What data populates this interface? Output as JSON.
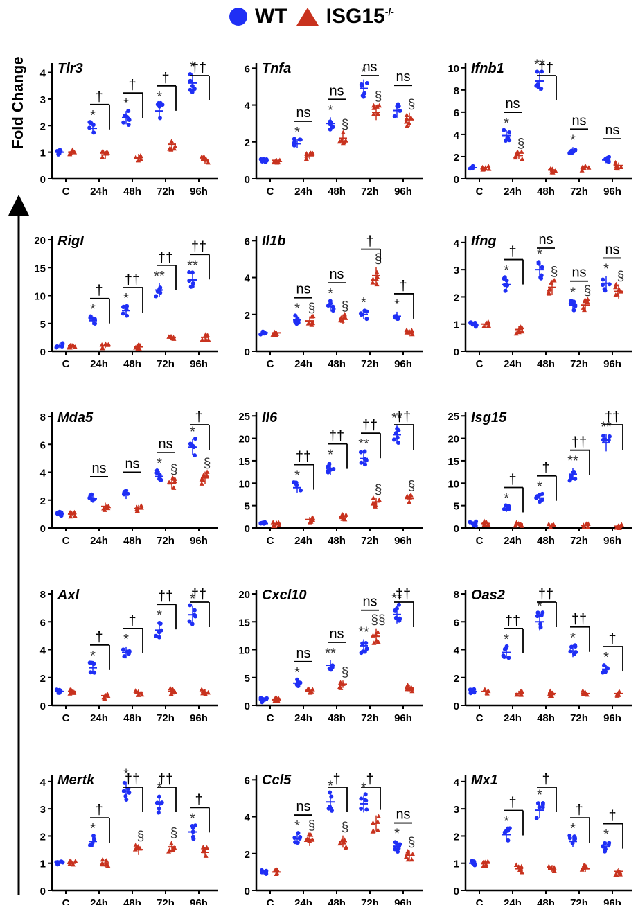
{
  "legend": {
    "wt_label": "WT",
    "ko_label": "ISG15",
    "ko_superscript": "-/-",
    "wt_color": "#1f2ff5",
    "ko_color": "#c8321e"
  },
  "y_axis_label": "Fold Change",
  "chart_data": [
    {
      "type": "scatter",
      "title": "Tlr3",
      "ticks": [
        0,
        1,
        2,
        3,
        4
      ],
      "ylim": [
        0,
        4.3
      ],
      "categories": [
        "C",
        "24h",
        "48h",
        "72h",
        "96h"
      ],
      "series": [
        {
          "name": "WT",
          "values": [
            1.0,
            1.9,
            2.3,
            2.55,
            3.6
          ]
        },
        {
          "name": "ISG15-/-",
          "values": [
            1.0,
            0.9,
            0.8,
            1.3,
            0.7
          ]
        }
      ],
      "markers": [
        [
          "",
          "†"
        ],
        [
          "*",
          "†"
        ],
        [
          "*",
          "†"
        ],
        [
          "*",
          "††"
        ],
        [
          "*",
          ""
        ]
      ]
    },
    {
      "type": "scatter",
      "title": "Tnfa",
      "ticks": [
        0,
        2,
        4,
        6
      ],
      "ylim": [
        0,
        6.2
      ],
      "categories": [
        "C",
        "24h",
        "48h",
        "72h",
        "96h"
      ],
      "series": [
        {
          "name": "WT",
          "values": [
            1.0,
            1.9,
            3.0,
            4.9,
            3.7
          ]
        },
        {
          "name": "ISG15-/-",
          "values": [
            1.0,
            1.25,
            2.2,
            3.6,
            3.2
          ]
        }
      ],
      "markers": [
        [
          "",
          "ns"
        ],
        [
          "*",
          "ns"
        ],
        [
          "*",
          "ns"
        ],
        [
          "*",
          "ns"
        ],
        [
          "",
          ""
        ]
      ],
      "ko_markers": [
        "",
        "",
        "§",
        "§",
        "§"
      ]
    },
    {
      "type": "scatter",
      "title": "Ifnb1",
      "ticks": [
        0,
        2,
        4,
        6,
        8,
        10
      ],
      "ylim": [
        0,
        10.3
      ],
      "categories": [
        "C",
        "24h",
        "48h",
        "72h",
        "96h"
      ],
      "series": [
        {
          "name": "WT",
          "values": [
            1.0,
            3.9,
            8.8,
            2.5,
            1.7
          ]
        },
        {
          "name": "ISG15-/-",
          "values": [
            1.0,
            2.1,
            0.8,
            1.0,
            1.2
          ]
        }
      ],
      "markers": [
        [
          "",
          "ns"
        ],
        [
          "*",
          "††"
        ],
        [
          "**",
          "ns"
        ],
        [
          "*",
          "ns"
        ],
        [
          "",
          ""
        ]
      ],
      "ko_markers": [
        "",
        "§",
        "",
        "",
        ""
      ]
    },
    {
      "type": "scatter",
      "title": "RigI",
      "ticks": [
        0,
        5,
        10,
        15,
        20
      ],
      "ylim": [
        0,
        20.5
      ],
      "categories": [
        "C",
        "24h",
        "48h",
        "72h",
        "96h"
      ],
      "series": [
        {
          "name": "WT",
          "values": [
            1.0,
            5.5,
            7.3,
            11.0,
            12.8
          ]
        },
        {
          "name": "ISG15-/-",
          "values": [
            1.0,
            1.0,
            0.8,
            2.5,
            2.5
          ]
        }
      ],
      "markers": [
        [
          "",
          "†"
        ],
        [
          "*",
          "††"
        ],
        [
          "*",
          "††"
        ],
        [
          "**",
          "††"
        ],
        [
          "**",
          ""
        ]
      ]
    },
    {
      "type": "scatter",
      "title": "Il1b",
      "ticks": [
        0,
        2,
        4,
        6
      ],
      "ylim": [
        0,
        6.2
      ],
      "categories": [
        "C",
        "24h",
        "48h",
        "72h",
        "96h"
      ],
      "series": [
        {
          "name": "WT",
          "values": [
            1.0,
            1.7,
            2.45,
            2.0,
            1.9
          ]
        },
        {
          "name": "ISG15-/-",
          "values": [
            1.0,
            1.65,
            1.75,
            4.1,
            1.0
          ]
        }
      ],
      "markers": [
        [
          "",
          "ns"
        ],
        [
          "*",
          "ns"
        ],
        [
          "*",
          "†"
        ],
        [
          "*",
          "†"
        ],
        [
          "*",
          ""
        ]
      ],
      "ko_markers": [
        "",
        "§",
        "§",
        "§",
        ""
      ]
    },
    {
      "type": "scatter",
      "title": "Ifng",
      "ticks": [
        0,
        1,
        2,
        3,
        4
      ],
      "ylim": [
        0,
        4.2
      ],
      "categories": [
        "C",
        "24h",
        "48h",
        "72h",
        "96h"
      ],
      "series": [
        {
          "name": "WT",
          "values": [
            1.0,
            2.45,
            3.0,
            1.7,
            2.5
          ]
        },
        {
          "name": "ISG15-/-",
          "values": [
            1.0,
            0.8,
            2.35,
            1.7,
            2.2
          ]
        }
      ],
      "markers": [
        [
          "",
          "†"
        ],
        [
          "*",
          "ns"
        ],
        [
          "*",
          "ns"
        ],
        [
          "*",
          "ns"
        ],
        [
          "*",
          ""
        ]
      ],
      "ko_markers": [
        "",
        "",
        "§",
        "§",
        "§"
      ]
    },
    {
      "type": "scatter",
      "title": "Mda5",
      "ticks": [
        0,
        2,
        4,
        6,
        8
      ],
      "ylim": [
        0,
        8.2
      ],
      "categories": [
        "C",
        "24h",
        "48h",
        "72h",
        "96h"
      ],
      "series": [
        {
          "name": "WT",
          "values": [
            1.0,
            2.1,
            2.4,
            3.7,
            5.8
          ]
        },
        {
          "name": "ISG15-/-",
          "values": [
            1.0,
            1.55,
            1.4,
            3.2,
            3.6
          ]
        }
      ],
      "markers": [
        [
          "",
          "ns"
        ],
        [
          "",
          "ns"
        ],
        [
          "",
          "ns"
        ],
        [
          "*",
          "†"
        ],
        [
          "*",
          ""
        ]
      ],
      "ko_markers": [
        "",
        "",
        "",
        "§",
        "§"
      ]
    },
    {
      "type": "scatter",
      "title": "Il6",
      "ticks": [
        0,
        5,
        10,
        15,
        20,
        25
      ],
      "ylim": [
        0,
        25.5
      ],
      "categories": [
        "C",
        "24h",
        "48h",
        "72h",
        "96h"
      ],
      "series": [
        {
          "name": "WT",
          "values": [
            1.0,
            9.0,
            13.3,
            15.5,
            20.8
          ]
        },
        {
          "name": "ISG15-/-",
          "values": [
            1.0,
            1.9,
            2.5,
            5.8,
            6.6
          ]
        }
      ],
      "markers": [
        [
          "",
          "††"
        ],
        [
          "*",
          "††"
        ],
        [
          "*",
          "††"
        ],
        [
          "**",
          "††"
        ],
        [
          "**",
          ""
        ]
      ],
      "ko_markers": [
        "",
        "",
        "",
        "§",
        "§"
      ]
    },
    {
      "type": "scatter",
      "title": "Isg15",
      "ticks": [
        0,
        5,
        10,
        15,
        20,
        25
      ],
      "ylim": [
        0,
        25.5
      ],
      "categories": [
        "C",
        "24h",
        "48h",
        "72h",
        "96h"
      ],
      "series": [
        {
          "name": "WT",
          "values": [
            1.0,
            4.3,
            6.7,
            12.0,
            19.0
          ]
        },
        {
          "name": "ISG15-/-",
          "values": [
            1.0,
            0.9,
            0.6,
            0.6,
            0.4
          ]
        }
      ],
      "markers": [
        [
          "",
          "†"
        ],
        [
          "*",
          "†"
        ],
        [
          "*",
          "††"
        ],
        [
          "**",
          "††"
        ],
        [
          "**",
          ""
        ]
      ]
    },
    {
      "type": "scatter",
      "title": "Axl",
      "ticks": [
        0,
        2,
        4,
        6,
        8
      ],
      "ylim": [
        0,
        8.2
      ],
      "categories": [
        "C",
        "24h",
        "48h",
        "72h",
        "96h"
      ],
      "series": [
        {
          "name": "WT",
          "values": [
            1.0,
            2.7,
            3.8,
            5.4,
            6.5
          ]
        },
        {
          "name": "ISG15-/-",
          "values": [
            1.0,
            0.7,
            0.95,
            1.0,
            0.95
          ]
        }
      ],
      "markers": [
        [
          "",
          "†"
        ],
        [
          "*",
          "†"
        ],
        [
          "*",
          "††"
        ],
        [
          "*",
          "††"
        ],
        [
          "*",
          ""
        ]
      ]
    },
    {
      "type": "scatter",
      "title": "Cxcl10",
      "ticks": [
        0,
        5,
        10,
        15,
        20
      ],
      "ylim": [
        0,
        20.5
      ],
      "categories": [
        "C",
        "24h",
        "48h",
        "72h",
        "96h"
      ],
      "series": [
        {
          "name": "WT",
          "values": [
            1.0,
            4.0,
            7.2,
            10.7,
            16.3
          ]
        },
        {
          "name": "ISG15-/-",
          "values": [
            1.0,
            2.7,
            3.8,
            12.4,
            3.1
          ]
        }
      ],
      "markers": [
        [
          "",
          "ns"
        ],
        [
          "*",
          "ns"
        ],
        [
          "**",
          "ns"
        ],
        [
          "**",
          "††"
        ],
        [
          "**",
          ""
        ]
      ],
      "ko_markers": [
        "",
        "",
        "§",
        "§§",
        ""
      ]
    },
    {
      "type": "scatter",
      "title": "Oas2",
      "ticks": [
        0,
        2,
        4,
        6,
        8
      ],
      "ylim": [
        0,
        8.2
      ],
      "categories": [
        "C",
        "24h",
        "48h",
        "72h",
        "96h"
      ],
      "series": [
        {
          "name": "WT",
          "values": [
            1.0,
            3.8,
            6.0,
            3.9,
            2.6
          ]
        },
        {
          "name": "ISG15-/-",
          "values": [
            1.0,
            0.85,
            0.85,
            0.85,
            0.85
          ]
        }
      ],
      "markers": [
        [
          "",
          "††"
        ],
        [
          "*",
          "††"
        ],
        [
          "*",
          "††"
        ],
        [
          "*",
          "†"
        ],
        [
          "*",
          ""
        ]
      ]
    },
    {
      "type": "scatter",
      "title": "Mertk",
      "ticks": [
        0,
        1,
        2,
        3,
        4
      ],
      "ylim": [
        0,
        4.2
      ],
      "categories": [
        "C",
        "24h",
        "48h",
        "72h",
        "96h"
      ],
      "series": [
        {
          "name": "WT",
          "values": [
            1.0,
            1.8,
            3.65,
            3.2,
            2.15
          ]
        },
        {
          "name": "ISG15-/-",
          "values": [
            1.0,
            1.0,
            1.5,
            1.6,
            1.4
          ]
        }
      ],
      "markers": [
        [
          "",
          "†"
        ],
        [
          "*",
          "††"
        ],
        [
          "*",
          "††"
        ],
        [
          "*",
          "†"
        ],
        [
          "*",
          ""
        ]
      ],
      "ko_markers": [
        "",
        "",
        "§",
        "§",
        ""
      ]
    },
    {
      "type": "scatter",
      "title": "Ccl5",
      "ticks": [
        0,
        2,
        4,
        6
      ],
      "ylim": [
        0,
        6.2
      ],
      "categories": [
        "C",
        "24h",
        "48h",
        "72h",
        "96h"
      ],
      "series": [
        {
          "name": "WT",
          "values": [
            1.0,
            2.8,
            4.8,
            4.7,
            2.4
          ]
        },
        {
          "name": "ISG15-/-",
          "values": [
            1.0,
            2.75,
            2.65,
            3.65,
            1.9
          ]
        }
      ],
      "markers": [
        [
          "",
          "ns"
        ],
        [
          "*",
          "†"
        ],
        [
          "*",
          "†"
        ],
        [
          "*",
          "ns"
        ],
        [
          "*",
          ""
        ]
      ],
      "ko_markers": [
        "",
        "§",
        "§",
        "",
        "§"
      ]
    },
    {
      "type": "scatter",
      "title": "Mx1",
      "ticks": [
        0,
        1,
        2,
        3,
        4
      ],
      "ylim": [
        0,
        4.2
      ],
      "categories": [
        "C",
        "24h",
        "48h",
        "72h",
        "96h"
      ],
      "series": [
        {
          "name": "WT",
          "values": [
            1.0,
            2.05,
            2.95,
            1.8,
            1.6
          ]
        },
        {
          "name": "ISG15-/-",
          "values": [
            1.0,
            0.8,
            0.8,
            0.8,
            0.7
          ]
        }
      ],
      "markers": [
        [
          "",
          "†"
        ],
        [
          "*",
          "†"
        ],
        [
          "*",
          "†"
        ],
        [
          "*",
          "†"
        ],
        [
          "*",
          ""
        ]
      ]
    }
  ]
}
